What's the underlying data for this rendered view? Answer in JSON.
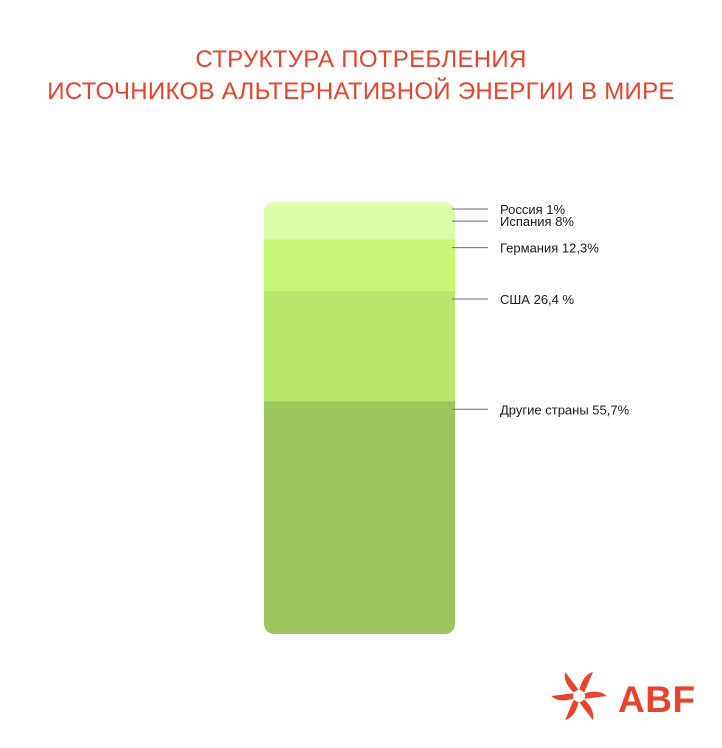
{
  "chart_data": {
    "type": "bar",
    "stacked": true,
    "title_line1": "СТРУКТУРА ПОТРЕБЛЕНИЯ",
    "title_line2": "ИСТОЧНИКОВ АЛЬТЕРНАТИВНОЙ ЭНЕРГИИ В МИРЕ",
    "segments": [
      {
        "label": "Россия 1%",
        "value": 1,
        "color": "#e6fbb8"
      },
      {
        "label": "Испания 8%",
        "value": 8,
        "color": "#d9fca4"
      },
      {
        "label": "Германия 12,3%",
        "value": 12.3,
        "color": "#c6f777"
      },
      {
        "label": "США 26,4 %",
        "value": 26.4,
        "color": "#b7e86d"
      },
      {
        "label": "Другие страны 55,7%",
        "value": 55.7,
        "color": "#9bc55d"
      }
    ]
  },
  "brand": {
    "name": "ABF",
    "color": "#e8432d",
    "icon": "abf-logo-icon"
  }
}
